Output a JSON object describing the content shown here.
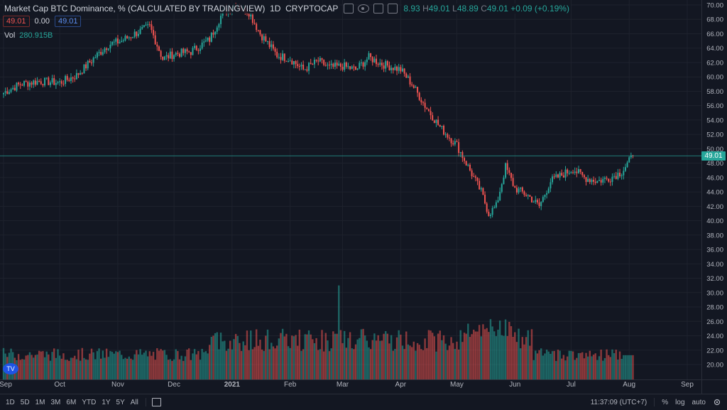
{
  "legend": {
    "title": "Market Cap BTC Dominance, % (CALCULATED BY TRADINGVIEW)",
    "interval": "1D",
    "source": "CRYPTOCAP",
    "open": "8.93",
    "high_label": "H",
    "high": "49.01",
    "low_label": "L",
    "low": "48.89",
    "close_label": "C",
    "close": "49.01",
    "change": "+0.09 (+0.19%)"
  },
  "toolbar": {
    "sell": "49.01",
    "spread": "0.00",
    "buy": "49.01"
  },
  "volume": {
    "label": "Vol",
    "value": "280.915B"
  },
  "watermark": "TV",
  "last_price_tag": "49.01",
  "bottom_bar": {
    "ranges": [
      "1D",
      "5D",
      "1M",
      "3M",
      "6M",
      "YTD",
      "1Y",
      "5Y",
      "All"
    ],
    "time": "11:37:09 (UTC+7)",
    "scale_percent": "%",
    "scale_log": "log",
    "scale_auto": "auto"
  },
  "colors": {
    "up": "#26a69a",
    "down": "#ef5350",
    "background": "#131722",
    "grid": "#1e222d"
  },
  "chart_data": {
    "type": "candlestick",
    "ylim": [
      19,
      70.5
    ],
    "price_ticks": [
      "70.00",
      "68.00",
      "66.00",
      "64.00",
      "62.00",
      "60.00",
      "58.00",
      "56.00",
      "54.00",
      "52.00",
      "50.00",
      "48.00",
      "46.00",
      "44.00",
      "42.00",
      "40.00",
      "38.00",
      "36.00",
      "34.00",
      "32.00",
      "30.00",
      "28.00",
      "26.00",
      "24.00",
      "22.00",
      "20.00"
    ],
    "x_labels": [
      "Sep",
      "Oct",
      "Nov",
      "Dec",
      "2021",
      "Feb",
      "Mar",
      "Apr",
      "May",
      "Jun",
      "Jul",
      "Aug",
      "Sep"
    ],
    "x_label_dates": [
      "2020-09-01",
      "2020-10-01",
      "2020-11-01",
      "2020-12-01",
      "2021-01-01",
      "2021-02-01",
      "2021-03-01",
      "2021-04-01",
      "2021-05-01",
      "2021-06-01",
      "2021-07-01",
      "2021-08-01",
      "2021-09-01"
    ],
    "close_keypoints": [
      [
        "2020-09-01",
        57.8
      ],
      [
        "2020-09-10",
        59.0
      ],
      [
        "2020-09-20",
        59.4
      ],
      [
        "2020-10-01",
        59.2
      ],
      [
        "2020-10-10",
        60.2
      ],
      [
        "2020-10-20",
        62.8
      ],
      [
        "2020-10-27",
        64.5
      ],
      [
        "2020-11-03",
        65.0
      ],
      [
        "2020-11-10",
        66.0
      ],
      [
        "2020-11-18",
        67.0
      ],
      [
        "2020-11-25",
        62.5
      ],
      [
        "2020-12-01",
        63.2
      ],
      [
        "2020-12-10",
        63.5
      ],
      [
        "2020-12-20",
        65.2
      ],
      [
        "2020-12-27",
        69.0
      ],
      [
        "2021-01-03",
        70.2
      ],
      [
        "2021-01-10",
        69.0
      ],
      [
        "2021-01-16",
        66.0
      ],
      [
        "2021-01-25",
        63.0
      ],
      [
        "2021-02-01",
        62.5
      ],
      [
        "2021-02-08",
        61.0
      ],
      [
        "2021-02-16",
        62.2
      ],
      [
        "2021-02-22",
        61.3
      ],
      [
        "2021-03-01",
        61.5
      ],
      [
        "2021-03-08",
        61.0
      ],
      [
        "2021-03-15",
        62.7
      ],
      [
        "2021-03-22",
        61.8
      ],
      [
        "2021-04-01",
        61.0
      ],
      [
        "2021-04-07",
        59.0
      ],
      [
        "2021-04-14",
        56.0
      ],
      [
        "2021-04-22",
        53.0
      ],
      [
        "2021-05-01",
        50.5
      ],
      [
        "2021-05-08",
        47.0
      ],
      [
        "2021-05-14",
        44.0
      ],
      [
        "2021-05-18",
        41.0
      ],
      [
        "2021-05-22",
        42.0
      ],
      [
        "2021-05-27",
        47.5
      ],
      [
        "2021-06-01",
        44.5
      ],
      [
        "2021-06-08",
        43.5
      ],
      [
        "2021-06-14",
        42.0
      ],
      [
        "2021-06-20",
        45.5
      ],
      [
        "2021-06-27",
        46.5
      ],
      [
        "2021-07-02",
        47.2
      ],
      [
        "2021-07-08",
        46.0
      ],
      [
        "2021-07-15",
        45.5
      ],
      [
        "2021-07-22",
        46.0
      ],
      [
        "2021-07-28",
        46.8
      ],
      [
        "2021-08-03",
        49.0
      ]
    ],
    "volume_spike_date": "2021-02-27",
    "volume_spike_value": 31.0,
    "last_date": "2021-08-03",
    "last_close": 49.01
  }
}
